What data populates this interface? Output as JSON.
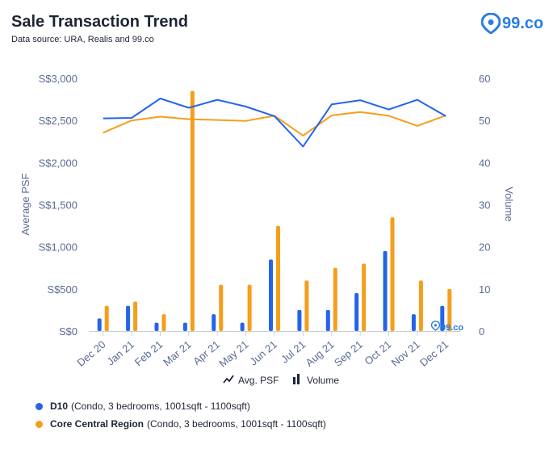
{
  "header": {
    "title": "Sale Transaction Trend",
    "subtitle": "Data source: URA, Realis and 99.co",
    "logo_text": "99.co"
  },
  "watermark_text": "99.co",
  "chart_legend": {
    "line_label": "Avg. PSF",
    "bar_label": "Volume"
  },
  "bottom_legend": [
    {
      "label": "D10",
      "detail": "(Condo, 3 bedrooms, 1001sqft - 1100sqft)",
      "color": "#2563eb"
    },
    {
      "label": "Core Central Region",
      "detail": "(Condo, 3 bedrooms, 1001sqft - 1100sqft)",
      "color": "#f59e1b"
    }
  ],
  "chart_data": {
    "type": "bar+line",
    "categories": [
      "Dec 20",
      "Jan 21",
      "Feb 21",
      "Mar 21",
      "Apr 21",
      "May 21",
      "Jun 21",
      "Jul 21",
      "Aug 21",
      "Sep 21",
      "Oct 21",
      "Nov 21",
      "Dec 21"
    ],
    "ylabel_left": "Average PSF",
    "ylabel_right": "Volume",
    "ylim_left": [
      0,
      3000
    ],
    "ylim_right": [
      0,
      60
    ],
    "left_ticks": [
      "S$0",
      "S$500",
      "S$1,000",
      "S$1,500",
      "S$2,000",
      "S$2,500",
      "S$3,000"
    ],
    "right_ticks": [
      "0",
      "10",
      "20",
      "30",
      "40",
      "50",
      "60"
    ],
    "bar_series": [
      {
        "name": "D10",
        "color": "#2563eb",
        "values": [
          3,
          6,
          2,
          2,
          4,
          2,
          17,
          5,
          5,
          9,
          19,
          4,
          6
        ]
      },
      {
        "name": "Core Central Region",
        "color": "#f59e1b",
        "values": [
          6,
          7,
          4,
          57,
          11,
          11,
          25,
          12,
          15,
          16,
          27,
          12,
          10
        ]
      }
    ],
    "line_series": [
      {
        "name": "D10",
        "color": "#2563eb",
        "values": [
          2525,
          2530,
          2760,
          2650,
          2745,
          2665,
          2550,
          2190,
          2690,
          2740,
          2630,
          2745,
          2550
        ]
      },
      {
        "name": "Core Central Region",
        "color": "#f59e1b",
        "values": [
          2355,
          2500,
          2545,
          2515,
          2505,
          2495,
          2555,
          2320,
          2560,
          2600,
          2555,
          2435,
          2560
        ]
      }
    ]
  }
}
